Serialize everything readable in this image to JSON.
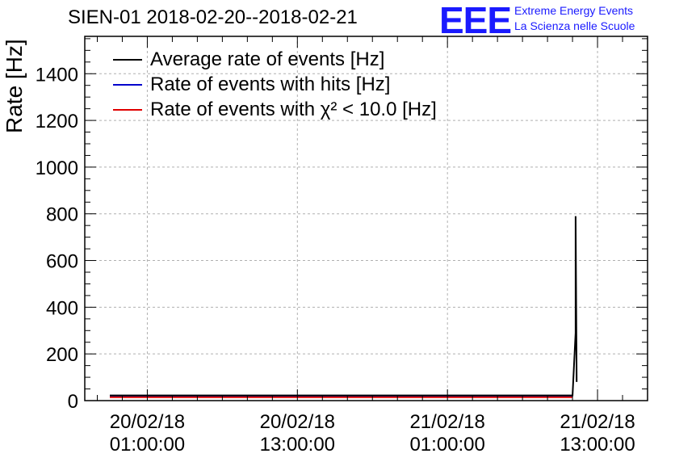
{
  "title": "SIEN-01 2018-02-20--2018-02-21",
  "logo": {
    "mark": "EEE",
    "line1": "Extreme Energy Events",
    "line2": "La Scienza nelle Scuole"
  },
  "colors": {
    "accent": "#1a1aff",
    "average": "#000000",
    "hits": "#0000cc",
    "chi2": "#e00000"
  },
  "chart_data": {
    "type": "line",
    "title": "SIEN-01 2018-02-20--2018-02-21",
    "xlabel": "",
    "ylabel": "Rate [Hz]",
    "ylim": [
      0,
      1560
    ],
    "xlim": [
      "2018-02-19 20:00",
      "2018-02-21 17:00"
    ],
    "y_ticks": [
      0,
      200,
      400,
      600,
      800,
      1000,
      1200,
      1400
    ],
    "x_ticks": [
      {
        "line1": "20/02/18",
        "line2": "01:00:00",
        "t": "2018-02-20 01:00"
      },
      {
        "line1": "20/02/18",
        "line2": "13:00:00",
        "t": "2018-02-20 13:00"
      },
      {
        "line1": "21/02/18",
        "line2": "01:00:00",
        "t": "2018-02-21 01:00"
      },
      {
        "line1": "21/02/18",
        "line2": "13:00:00",
        "t": "2018-02-21 13:00"
      }
    ],
    "grid": true,
    "legend_position": "top-left",
    "series": [
      {
        "name": "Average rate of events [Hz]",
        "color": "#000000",
        "x": [
          "2018-02-19 22:00",
          "2018-02-20 06:00",
          "2018-02-20 14:00",
          "2018-02-20 22:00",
          "2018-02-21 06:00",
          "2018-02-21 10:00",
          "2018-02-21 11:00",
          "2018-02-21 11:15",
          "2018-02-21 11:15",
          "2018-02-21 11:20"
        ],
        "values": [
          22,
          22,
          22,
          22,
          22,
          22,
          22,
          290,
          790,
          80
        ]
      },
      {
        "name": "Rate of events with hits [Hz]",
        "color": "#0000cc",
        "x": [
          "2018-02-19 22:00",
          "2018-02-20 06:00",
          "2018-02-20 14:00",
          "2018-02-20 22:00",
          "2018-02-21 06:00",
          "2018-02-21 11:00"
        ],
        "values": [
          21,
          21,
          21,
          21,
          21,
          21
        ]
      },
      {
        "name": "Rate of events with χ² < 10.0 [Hz]",
        "color": "#e00000",
        "x": [
          "2018-02-19 22:00",
          "2018-02-20 06:00",
          "2018-02-20 14:00",
          "2018-02-20 22:00",
          "2018-02-21 06:00",
          "2018-02-21 11:00"
        ],
        "values": [
          15,
          15,
          15,
          15,
          15,
          15
        ]
      }
    ]
  }
}
